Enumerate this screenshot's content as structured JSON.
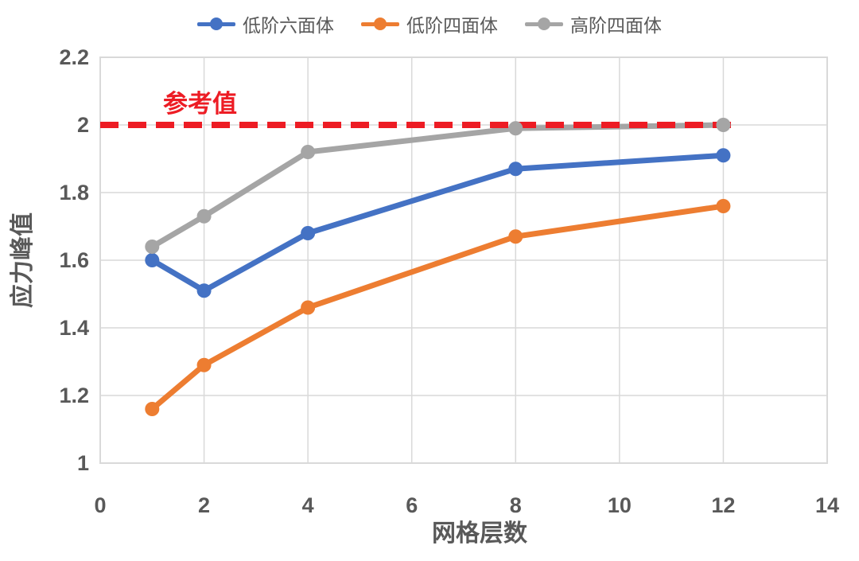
{
  "chart_data": {
    "type": "line",
    "x": [
      1,
      2,
      4,
      8,
      12
    ],
    "series": [
      {
        "name": "低阶六面体",
        "color": "#4472C4",
        "values": [
          1.6,
          1.51,
          1.68,
          1.87,
          1.91
        ]
      },
      {
        "name": "低阶四面体",
        "color": "#ED7D31",
        "values": [
          1.16,
          1.29,
          1.46,
          1.67,
          1.76
        ]
      },
      {
        "name": "高阶四面体",
        "color": "#A5A5A5",
        "values": [
          1.64,
          1.73,
          1.92,
          1.99,
          2.0
        ]
      }
    ],
    "reference_line": {
      "label": "参考值",
      "value": 2.0,
      "color": "#ED1C24"
    },
    "xlabel": "网格层数",
    "ylabel": "应力峰值",
    "xlim": [
      0,
      14
    ],
    "ylim": [
      1.0,
      2.2
    ],
    "x_ticks": [
      0,
      2,
      4,
      6,
      8,
      10,
      12,
      14
    ],
    "x_tick_labels": [
      "0",
      "2",
      "4",
      "6",
      "8",
      "10",
      "12",
      "14"
    ],
    "y_ticks": [
      1.0,
      1.2,
      1.4,
      1.6,
      1.8,
      2.0,
      2.2
    ],
    "y_tick_labels": [
      "1",
      "1.2",
      "1.4",
      "1.6",
      "1.8",
      "2",
      "2.2"
    ],
    "grid": true,
    "legend_position": "top"
  },
  "styles": {
    "text_color": "#595959",
    "grid_color": "#D9D9D9",
    "background": "#ffffff"
  }
}
